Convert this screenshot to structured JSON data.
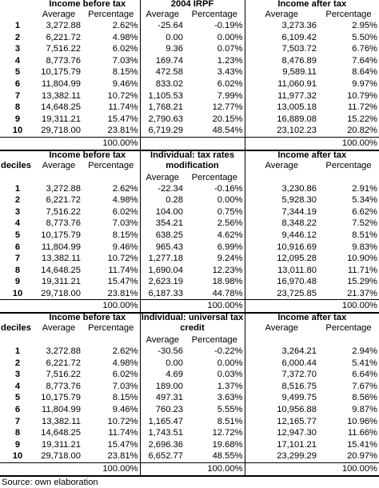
{
  "sections": [
    {
      "title_line1": "Income before tax",
      "mid_title_line1": "2004 IRPF",
      "mid_title_line2": "",
      "right_title_line1": "Income after tax",
      "deciles_label": "",
      "col_headers": [
        "Average",
        "Percentage",
        "Average",
        "Percentage",
        "Average",
        "Percentage"
      ],
      "rows": [
        [
          "1",
          "3,272.88",
          "2.62%",
          "-25.64",
          "-0.19%",
          "3,273.36",
          "2.95%"
        ],
        [
          "2",
          "6,221.72",
          "4.98%",
          "0.00",
          "0.00%",
          "6,109.42",
          "5.50%"
        ],
        [
          "3",
          "7,516.22",
          "6.02%",
          "9.36",
          "0.07%",
          "7,503.72",
          "6.76%"
        ],
        [
          "4",
          "8,773.76",
          "7.03%",
          "169.74",
          "1.23%",
          "8,476.89",
          "7.64%"
        ],
        [
          "5",
          "10,175.79",
          "8.15%",
          "472.58",
          "3.43%",
          "9,589.11",
          "8.64%"
        ],
        [
          "6",
          "11,804.99",
          "9.46%",
          "833.02",
          "6.02%",
          "11,060.91",
          "9.97%"
        ],
        [
          "7",
          "13,382.11",
          "10.72%",
          "1,105.53",
          "7.99%",
          "11,977.32",
          "10.79%"
        ],
        [
          "8",
          "14,648.25",
          "11.74%",
          "1,768.21",
          "12.77%",
          "13,005.18",
          "11.72%"
        ],
        [
          "9",
          "19,311.21",
          "15.47%",
          "2,790.63",
          "20.15%",
          "16,889.08",
          "15.22%"
        ],
        [
          "10",
          "29,718.00",
          "23.81%",
          "6,719.29",
          "48.54%",
          "23,102.23",
          "20.82%"
        ]
      ],
      "totals": [
        "100.00%",
        "",
        "100.00%"
      ]
    },
    {
      "title_line1": "Income before tax",
      "mid_title_line1": "Individual: tax rates",
      "mid_title_line2": "modification",
      "right_title_line1": "Income after tax",
      "deciles_label": "deciles",
      "col_headers": [
        "Average",
        "Percentage",
        "Average",
        "Percentage",
        "Average",
        "Percentage"
      ],
      "rows": [
        [
          "1",
          "3,272.88",
          "2.62%",
          "-22.34",
          "-0.16%",
          "3,230.86",
          "2.91%"
        ],
        [
          "2",
          "6,221.72",
          "4.98%",
          "0.28",
          "0.00%",
          "5,928.30",
          "5.34%"
        ],
        [
          "3",
          "7,516.22",
          "6.02%",
          "104.00",
          "0.75%",
          "7,344.19",
          "6.62%"
        ],
        [
          "4",
          "8,773.76",
          "7.03%",
          "354.21",
          "2.56%",
          "8,348.22",
          "7.52%"
        ],
        [
          "5",
          "10,175.79",
          "8.15%",
          "638.25",
          "4.62%",
          "9,446.12",
          "8.51%"
        ],
        [
          "6",
          "11,804.99",
          "9.46%",
          "965.43",
          "6.99%",
          "10,916.69",
          "9.83%"
        ],
        [
          "7",
          "13,382.11",
          "10.72%",
          "1,277.18",
          "9.24%",
          "12,095.28",
          "10.90%"
        ],
        [
          "8",
          "14,648.25",
          "11.74%",
          "1,690.04",
          "12.23%",
          "13,011.80",
          "11.71%"
        ],
        [
          "9",
          "19,311.21",
          "15.47%",
          "2,623.19",
          "18.98%",
          "16,970.48",
          "15.29%"
        ],
        [
          "10",
          "29,718.00",
          "23.81%",
          "6,187.33",
          "44.78%",
          "23,725.85",
          "21.37%"
        ]
      ],
      "totals": [
        "100.00%",
        "100.00%",
        "100.00%"
      ]
    },
    {
      "title_line1": "Income before tax",
      "mid_title_line1": "Individual: universal tax",
      "mid_title_line2": "credit",
      "right_title_line1": "Income after tax",
      "deciles_label": "deciles",
      "col_headers": [
        "Average",
        "Percentage",
        "Average",
        "Percentage",
        "Average",
        "Percentage"
      ],
      "rows": [
        [
          "1",
          "3,272.88",
          "2.62%",
          "-30.56",
          "-0.22%",
          "3,264.21",
          "2.94%"
        ],
        [
          "2",
          "6,221.72",
          "4.98%",
          "0.00",
          "0.00%",
          "6,000.44",
          "5.41%"
        ],
        [
          "3",
          "7,516.22",
          "6.02%",
          "4.69",
          "0.03%",
          "7,372.70",
          "6.64%"
        ],
        [
          "4",
          "8,773.76",
          "7.03%",
          "189.00",
          "1.37%",
          "8,516.75",
          "7.67%"
        ],
        [
          "5",
          "10,175.79",
          "8.15%",
          "497.31",
          "3.63%",
          "9,499.75",
          "8.56%"
        ],
        [
          "6",
          "11,804.99",
          "9.46%",
          "760.23",
          "5.55%",
          "10,956.88",
          "9.87%"
        ],
        [
          "7",
          "13,382.11",
          "10.72%",
          "1,165.47",
          "8.51%",
          "12,165.77",
          "10.96%"
        ],
        [
          "8",
          "14,648.25",
          "11.74%",
          "1,743.51",
          "12.72%",
          "12,947.30",
          "11.66%"
        ],
        [
          "9",
          "19,311.21",
          "15.47%",
          "2,696.36",
          "19.68%",
          "17,101.21",
          "15.41%"
        ],
        [
          "10",
          "29,718.00",
          "23.81%",
          "6,652.77",
          "48.55%",
          "23,299.29",
          "20.97%"
        ]
      ],
      "totals": [
        "100.00%",
        "100.00%",
        "100.00%"
      ]
    }
  ],
  "source": "Source: own elaboration"
}
